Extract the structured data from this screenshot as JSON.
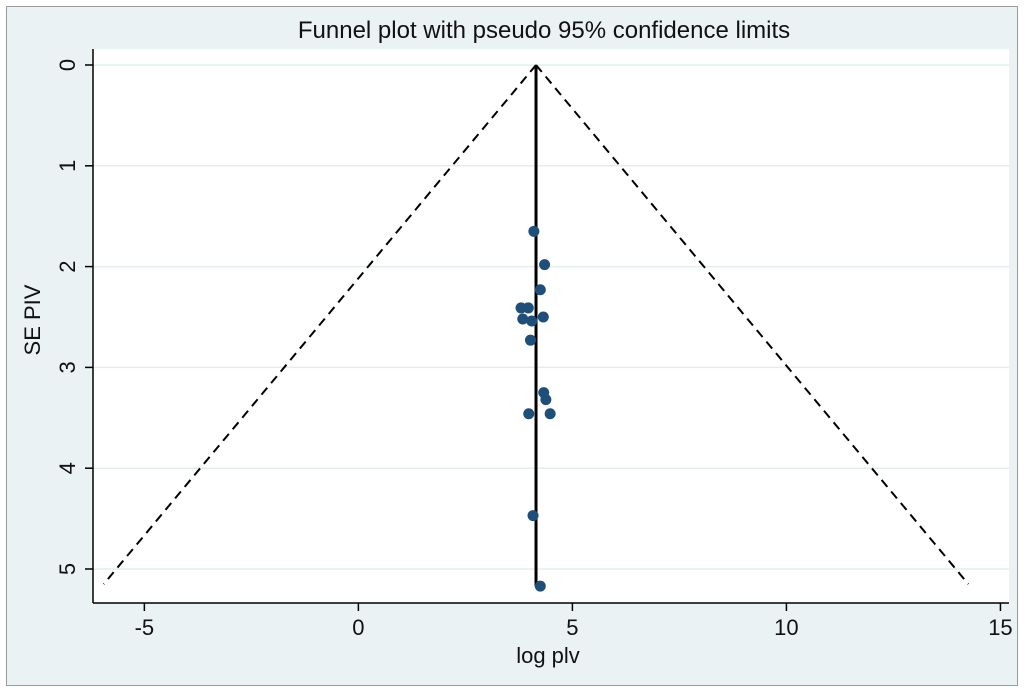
{
  "chart_data": {
    "type": "scatter",
    "title": "Funnel plot with pseudo 95% confidence limits",
    "xlabel": "log plv",
    "ylabel": "SE PIV",
    "xlim": [
      -6.2,
      15.2
    ],
    "ylim": [
      5.3,
      0
    ],
    "y_reversed": true,
    "x_ticks": [
      -5,
      0,
      5,
      10,
      15
    ],
    "y_ticks": [
      0,
      1,
      2,
      3,
      4,
      5
    ],
    "grid": "horizontal",
    "pooled_estimate": 4.15,
    "funnel_limits": {
      "apex": [
        4.15,
        0
      ],
      "left_bottom": [
        -5.95,
        5.15
      ],
      "right_bottom": [
        14.25,
        5.15
      ]
    },
    "points": [
      {
        "x": 4.1,
        "y": 1.65
      },
      {
        "x": 4.35,
        "y": 1.98
      },
      {
        "x": 4.25,
        "y": 2.23
      },
      {
        "x": 3.8,
        "y": 2.41
      },
      {
        "x": 3.97,
        "y": 2.41
      },
      {
        "x": 3.84,
        "y": 2.52
      },
      {
        "x": 4.05,
        "y": 2.54
      },
      {
        "x": 4.32,
        "y": 2.5
      },
      {
        "x": 4.02,
        "y": 2.73
      },
      {
        "x": 4.33,
        "y": 3.25
      },
      {
        "x": 4.38,
        "y": 3.32
      },
      {
        "x": 3.98,
        "y": 3.46
      },
      {
        "x": 4.48,
        "y": 3.46
      },
      {
        "x": 4.08,
        "y": 4.47
      },
      {
        "x": 4.25,
        "y": 5.17
      }
    ],
    "colors": {
      "panel_background": "#eaf2f3",
      "plot_background": "#ffffff",
      "grid": "#e3eded",
      "marker": "#1f4e79",
      "line": "#000000"
    }
  }
}
